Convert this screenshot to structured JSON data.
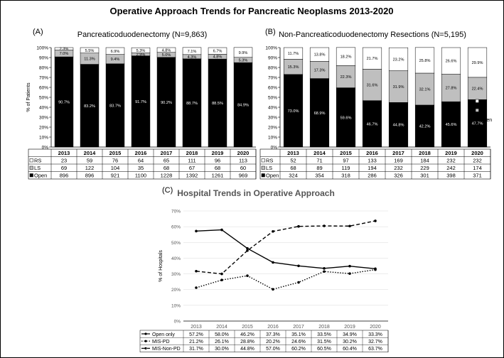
{
  "figure_title": "Operative Approach Trends for Pancreatic Neoplasms 2013-2020",
  "chart_data": [
    {
      "panel": "(A)",
      "type": "stacked-bar",
      "title": "Pancreaticoduodenectomy (N=9,863)",
      "ylabel": "% of Patients",
      "ylim": [
        0,
        100
      ],
      "yticks": [
        "0%",
        "10%",
        "20%",
        "30%",
        "40%",
        "50%",
        "60%",
        "70%",
        "80%",
        "90%",
        "100%"
      ],
      "categories": [
        "2013",
        "2014",
        "2015",
        "2016",
        "2017",
        "2018",
        "2019",
        "2020"
      ],
      "series": [
        {
          "name": "Open",
          "color": "#000000",
          "values": [
            90.7,
            83.2,
            83.7,
            91.7,
            90.2,
            88.7,
            88.5,
            84.9
          ],
          "labels": [
            "90.7%",
            "83.2%",
            "83.7%",
            "91.7%",
            "90.2%",
            "88.7%",
            "88.5%",
            "84.9%"
          ]
        },
        {
          "name": "LS",
          "color": "#bfbfbf",
          "values": [
            7.0,
            11.3,
            9.4,
            2.9,
            5.0,
            4.3,
            4.8,
            5.3
          ],
          "labels": [
            "7.0%",
            "11.3%",
            "9.4%",
            "2.9%",
            "5.0%",
            "4.3%",
            "4.8%",
            "5.3%"
          ]
        },
        {
          "name": "RS",
          "color": "#ffffff",
          "values": [
            2.3,
            5.5,
            6.9,
            5.3,
            4.8,
            7.1,
            6.7,
            9.9
          ],
          "labels": [
            "2.3%",
            "5.5%",
            "6.9%",
            "5.3%",
            "4.8%",
            "7.1%",
            "6.7%",
            "9.9%"
          ]
        }
      ],
      "table": [
        {
          "legend": "RS",
          "color": "#ffffff",
          "values": [
            "23",
            "59",
            "76",
            "64",
            "65",
            "111",
            "96",
            "113"
          ]
        },
        {
          "legend": "LS",
          "color": "#bfbfbf",
          "values": [
            "69",
            "122",
            "104",
            "35",
            "68",
            "67",
            "68",
            "60"
          ]
        },
        {
          "legend": "Open",
          "color": "#000000",
          "values": [
            "896",
            "896",
            "921",
            "1100",
            "1228",
            "1392",
            "1261",
            "969"
          ]
        }
      ]
    },
    {
      "panel": "(B)",
      "type": "stacked-bar",
      "title": "Non-Pancreaticoduodenectomy Resections (N=5,195)",
      "ylim": [
        0,
        100
      ],
      "yticks": [
        "0%",
        "10%",
        "20%",
        "30%",
        "40%",
        "50%",
        "60%",
        "70%",
        "80%",
        "90%",
        "100%"
      ],
      "categories": [
        "2013",
        "2014",
        "2015",
        "2016",
        "2017",
        "2018",
        "2019",
        "2020"
      ],
      "series": [
        {
          "name": "Open",
          "color": "#000000",
          "values": [
            73.0,
            68.9,
            59.6,
            46.7,
            44.8,
            42.2,
            45.6,
            47.7
          ],
          "labels": [
            "73.0%",
            "68.9%",
            "59.6%",
            "46.7%",
            "44.8%",
            "42.2%",
            "45.6%",
            "47.7%"
          ]
        },
        {
          "name": "LS",
          "color": "#bfbfbf",
          "values": [
            15.3,
            17.3,
            22.3,
            31.6,
            31.9,
            32.1,
            27.8,
            22.4
          ],
          "labels": [
            "15.3%",
            "17.3%",
            "22.3%",
            "31.6%",
            "31.9%",
            "32.1%",
            "27.8%",
            "22.4%"
          ]
        },
        {
          "name": "RS",
          "color": "#ffffff",
          "values": [
            11.7,
            13.8,
            18.2,
            21.7,
            23.2,
            25.8,
            26.6,
            29.9
          ],
          "labels": [
            "11.7%",
            "13.8%",
            "18.2%",
            "21.7%",
            "23.2%",
            "25.8%",
            "26.6%",
            "29.9%"
          ]
        }
      ],
      "legend": [
        "RS",
        "LS",
        "Open"
      ],
      "table": [
        {
          "legend": "RS",
          "color": "#ffffff",
          "values": [
            "52",
            "71",
            "97",
            "133",
            "169",
            "184",
            "232",
            "232"
          ]
        },
        {
          "legend": "LS",
          "color": "#bfbfbf",
          "values": [
            "68",
            "89",
            "119",
            "194",
            "232",
            "229",
            "242",
            "174"
          ]
        },
        {
          "legend": "Open",
          "color": "#000000",
          "values": [
            "324",
            "354",
            "318",
            "286",
            "326",
            "301",
            "398",
            "371"
          ]
        }
      ]
    },
    {
      "panel": "(C)",
      "type": "line",
      "title": "Hospital Trends in Operative Approach",
      "ylabel": "% of Hospitals",
      "ylim": [
        0,
        70
      ],
      "yticks": [
        "0%",
        "10%",
        "20%",
        "30%",
        "40%",
        "50%",
        "60%",
        "70%"
      ],
      "categories": [
        "2013",
        "2014",
        "2015",
        "2016",
        "2017",
        "2018",
        "2019",
        "2020"
      ],
      "series": [
        {
          "name": "Open only",
          "dash": "solid",
          "values": [
            57.2,
            58.0,
            46.2,
            37.3,
            35.1,
            33.5,
            34.9,
            33.3
          ],
          "labels": [
            "57.2%",
            "58.0%",
            "46.2%",
            "37.3%",
            "35.1%",
            "33.5%",
            "34.9%",
            "33.3%"
          ]
        },
        {
          "name": "MIS-PD",
          "dash": "dotted",
          "values": [
            21.2,
            26.1,
            28.8,
            20.2,
            24.6,
            31.5,
            30.2,
            32.7
          ],
          "labels": [
            "21.2%",
            "26.1%",
            "28.8%",
            "20.2%",
            "24.6%",
            "31.5%",
            "30.2%",
            "32.7%"
          ]
        },
        {
          "name": "MIS-Non-PD",
          "dash": "dashed",
          "values": [
            31.7,
            30.0,
            44.8,
            57.0,
            60.2,
            60.5,
            60.4,
            63.7
          ],
          "labels": [
            "31.7%",
            "30.0%",
            "44.8%",
            "57.0%",
            "60.2%",
            "60.5%",
            "60.4%",
            "63.7%"
          ]
        }
      ]
    }
  ]
}
